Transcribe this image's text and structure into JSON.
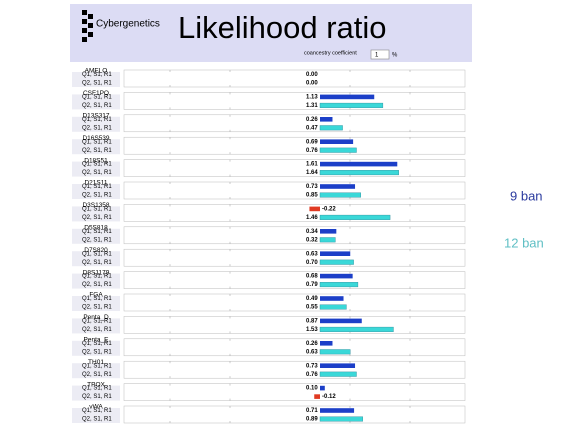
{
  "header": {
    "logo": "Cybergenetics",
    "title": "Likelihood ratio",
    "coancestry_label": "coancestry coefficient",
    "coancestry_value": 1,
    "unit": "%"
  },
  "loci": [
    {
      "name": "AMELO",
      "rows": [
        {
          "label": "Q1, S1, R1",
          "value": 0,
          "value_label": "0.00"
        },
        {
          "label": "Q2, S1, R1",
          "value": 0,
          "value_label": "0.00"
        }
      ]
    },
    {
      "name": "CSF1PO",
      "rows": [
        {
          "label": "Q1, S1, R1",
          "value": 1.13,
          "value_label": "1.13"
        },
        {
          "label": "Q2, S1, R1",
          "value": 1.31,
          "value_label": "1.31"
        }
      ]
    },
    {
      "name": "D13S317",
      "rows": [
        {
          "label": "Q1, S1, R1",
          "value": 0.26,
          "value_label": "0.26"
        },
        {
          "label": "Q2, S1, R1",
          "value": 0.47,
          "value_label": "0.47"
        }
      ]
    },
    {
      "name": "D16S539",
      "rows": [
        {
          "label": "Q1, S1, R1",
          "value": 0.69,
          "value_label": "0.69"
        },
        {
          "label": "Q2, S1, R1",
          "value": 0.76,
          "value_label": "0.76"
        }
      ]
    },
    {
      "name": "D18S51",
      "rows": [
        {
          "label": "Q1, S1, R1",
          "value": 1.61,
          "value_label": "1.61"
        },
        {
          "label": "Q2, S1, R1",
          "value": 1.64,
          "value_label": "1.64"
        }
      ]
    },
    {
      "name": "D21S11",
      "rows": [
        {
          "label": "Q1, S1, R1",
          "value": 0.73,
          "value_label": "0.73"
        },
        {
          "label": "Q2, S1, R1",
          "value": 0.85,
          "value_label": "0.85"
        }
      ]
    },
    {
      "name": "D3S1358",
      "rows": [
        {
          "label": "Q1, S1, R1",
          "value": -0.22,
          "value_label": "-0.22"
        },
        {
          "label": "Q2, S1, R1",
          "value": 1.46,
          "value_label": "1.46"
        }
      ]
    },
    {
      "name": "D5S818",
      "rows": [
        {
          "label": "Q1, S1, R1",
          "value": 0.34,
          "value_label": "0.34"
        },
        {
          "label": "Q2, S1, R1",
          "value": 0.32,
          "value_label": "0.32"
        }
      ]
    },
    {
      "name": "D7S820",
      "rows": [
        {
          "label": "Q1, S1, R1",
          "value": 0.63,
          "value_label": "0.63"
        },
        {
          "label": "Q2, S1, R1",
          "value": 0.7,
          "value_label": "0.70"
        }
      ]
    },
    {
      "name": "D8S1179",
      "rows": [
        {
          "label": "Q1, S1, R1",
          "value": 0.68,
          "value_label": "0.68"
        },
        {
          "label": "Q2, S1, R1",
          "value": 0.79,
          "value_label": "0.79"
        }
      ]
    },
    {
      "name": "FGA",
      "rows": [
        {
          "label": "Q1, S1, R1",
          "value": 0.49,
          "value_label": "0.49"
        },
        {
          "label": "Q2, S1, R1",
          "value": 0.55,
          "value_label": "0.55"
        }
      ]
    },
    {
      "name": "Penta_D",
      "rows": [
        {
          "label": "Q1, S1, R1",
          "value": 0.87,
          "value_label": "0.87"
        },
        {
          "label": "Q2, S1, R1",
          "value": 1.53,
          "value_label": "1.53"
        }
      ]
    },
    {
      "name": "Penta_E",
      "rows": [
        {
          "label": "Q1, S1, R1",
          "value": 0.26,
          "value_label": "0.26"
        },
        {
          "label": "Q2, S1, R1",
          "value": 0.63,
          "value_label": "0.63"
        }
      ]
    },
    {
      "name": "TH01",
      "rows": [
        {
          "label": "Q1, S1, R1",
          "value": 0.73,
          "value_label": "0.73"
        },
        {
          "label": "Q2, S1, R1",
          "value": 0.76,
          "value_label": "0.76"
        }
      ]
    },
    {
      "name": "TPOX",
      "rows": [
        {
          "label": "Q1, S1, R1",
          "value": 0.1,
          "value_label": "0.10"
        },
        {
          "label": "Q2, S1, R1",
          "value": -0.12,
          "value_label": "-0.12"
        }
      ]
    },
    {
      "name": "vWA",
      "rows": [
        {
          "label": "Q1, S1, R1",
          "value": 0.71,
          "value_label": "0.71"
        },
        {
          "label": "Q2, S1, R1",
          "value": 0.89,
          "value_label": "0.89"
        }
      ]
    }
  ],
  "annotations": [
    "9 ban",
    "12 ban"
  ]
}
